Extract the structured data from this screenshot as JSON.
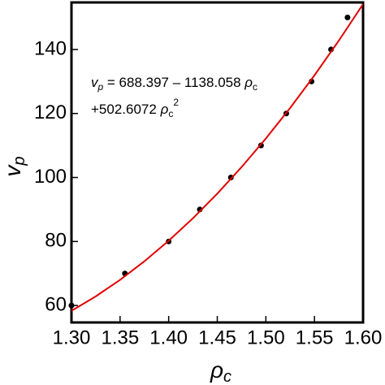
{
  "chart_data": {
    "type": "scatter",
    "xlabel": {
      "text": "ρ",
      "sub": "c"
    },
    "ylabel": {
      "text": "v",
      "sub": "p"
    },
    "annotation": {
      "line1": [
        "v",
        "p",
        " = 688.397 – 1138.058 ",
        "ρ",
        "c"
      ],
      "line2": [
        "+502.6072 ",
        "ρ",
        "c",
        "2"
      ]
    },
    "xlim": [
      1.3,
      1.6
    ],
    "ylim": [
      54.7,
      154.7
    ],
    "xticks": [
      {
        "value": 1.3,
        "label": "1.30"
      },
      {
        "value": 1.35,
        "label": "1.35"
      },
      {
        "value": 1.4,
        "label": "1.40"
      },
      {
        "value": 1.45,
        "label": "1.45"
      },
      {
        "value": 1.5,
        "label": "1.50"
      },
      {
        "value": 1.55,
        "label": "1.55"
      },
      {
        "value": 1.6,
        "label": "1.60"
      }
    ],
    "yticks": [
      60,
      80,
      100,
      120,
      140
    ],
    "series": [
      {
        "style": "markers",
        "color": "#000000",
        "x": [
          1.3,
          1.355,
          1.4,
          1.432,
          1.464,
          1.495,
          1.521,
          1.547,
          1.567,
          1.584
        ],
        "values": [
          60,
          70,
          80,
          90,
          100,
          110,
          120,
          130,
          140,
          150
        ]
      },
      {
        "style": "line",
        "color": "#e00000",
        "x": [
          1.3,
          1.325,
          1.35,
          1.375,
          1.4,
          1.425,
          1.45,
          1.475,
          1.5,
          1.525,
          1.55,
          1.575,
          1.6
        ],
        "values": [
          58.33,
          62.86,
          68.02,
          73.81,
          80.23,
          87.27,
          94.95,
          103.25,
          112.18,
          121.74,
          131.92,
          142.74,
          154.18
        ]
      }
    ]
  }
}
